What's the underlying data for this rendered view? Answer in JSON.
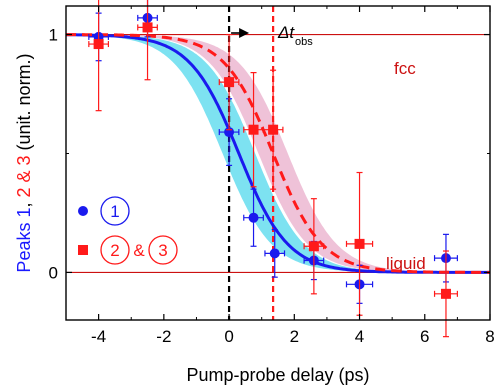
{
  "chart_data": {
    "type": "scatter",
    "title": "",
    "xlabel": "Pump-probe delay (ps)",
    "ylabel_parts": [
      {
        "text": "Peaks ",
        "color": "#1a1aff"
      },
      {
        "text": "1",
        "color": "#1a1aff"
      },
      {
        "text": ", ",
        "color": "#000000"
      },
      {
        "text": "2 & 3",
        "color": "#ff1a1a"
      },
      {
        "text": " (unit. norm.)",
        "color": "#000000"
      }
    ],
    "xlim": [
      -5,
      8
    ],
    "ylim": [
      -0.2,
      1.12
    ],
    "x_ticks": [
      -4,
      -2,
      0,
      2,
      4,
      6,
      8
    ],
    "y_ticks": [
      0,
      1
    ],
    "grid": false,
    "legend_placement": "left",
    "legend": {
      "peak1_label": "1",
      "peak23_label_a": "2",
      "peak23_amp": "&",
      "peak23_label_b": "3"
    },
    "colors": {
      "peak1": "#1a1aee",
      "peak1_band": "#66ddee",
      "peak23": "#ff1a1a",
      "peak23_band": "#e8a8c8",
      "reference_line": "#cc1111"
    },
    "reference_lines": [
      {
        "y": 1,
        "label": "fcc"
      },
      {
        "y": 0,
        "label": "liquid"
      }
    ],
    "vertical_markers": [
      {
        "x": 0,
        "style": "dashed",
        "color": "#000000"
      },
      {
        "x": 1.35,
        "style": "dashed",
        "color": "#ff1a1a"
      }
    ],
    "annotation": {
      "symbol": "Δt",
      "subscript": "obs",
      "from_x": 0,
      "to_x": 1.35
    },
    "series": [
      {
        "marker": "circle",
        "color": "#1a1aee",
        "points": [
          {
            "x": -4.0,
            "y": 0.99,
            "xerr": 0.3,
            "yerr": 0.1
          },
          {
            "x": -2.5,
            "y": 1.07,
            "xerr": 0.3,
            "yerr": 0.08
          },
          {
            "x": 0.0,
            "y": 0.59,
            "xerr": 0.3,
            "yerr": 0.14
          },
          {
            "x": 0.75,
            "y": 0.23,
            "xerr": 0.3,
            "yerr": 0.12
          },
          {
            "x": 1.4,
            "y": 0.08,
            "xerr": 0.3,
            "yerr": 0.1
          },
          {
            "x": 2.6,
            "y": 0.05,
            "xerr": 0.3,
            "yerr": 0.08
          },
          {
            "x": 4.0,
            "y": -0.05,
            "xerr": 0.4,
            "yerr": 0.08
          },
          {
            "x": 6.65,
            "y": 0.06,
            "xerr": 0.35,
            "yerr": 0.1
          }
        ],
        "fit": {
          "center": 0.3,
          "width": 0.75,
          "band_halfwidth": 0.5
        }
      },
      {
        "marker": "square",
        "color": "#ff1a1a",
        "points": [
          {
            "x": -4.0,
            "y": 0.96,
            "xerr": 0.3,
            "yerr": 0.28
          },
          {
            "x": -2.5,
            "y": 1.03,
            "xerr": 0.3,
            "yerr": 0.22
          },
          {
            "x": 0.0,
            "y": 0.8,
            "xerr": 0.3,
            "yerr": 0.2
          },
          {
            "x": 0.75,
            "y": 0.6,
            "xerr": 0.3,
            "yerr": 0.24
          },
          {
            "x": 1.35,
            "y": 0.6,
            "xerr": 0.3,
            "yerr": 0.25
          },
          {
            "x": 2.6,
            "y": 0.11,
            "xerr": 0.3,
            "yerr": 0.2
          },
          {
            "x": 4.0,
            "y": 0.12,
            "xerr": 0.4,
            "yerr": 0.3
          },
          {
            "x": 6.65,
            "y": -0.09,
            "xerr": 0.35,
            "yerr": 0.18
          }
        ],
        "fit": {
          "center": 1.35,
          "width": 0.75,
          "band_halfwidth": 0.45
        }
      }
    ]
  }
}
